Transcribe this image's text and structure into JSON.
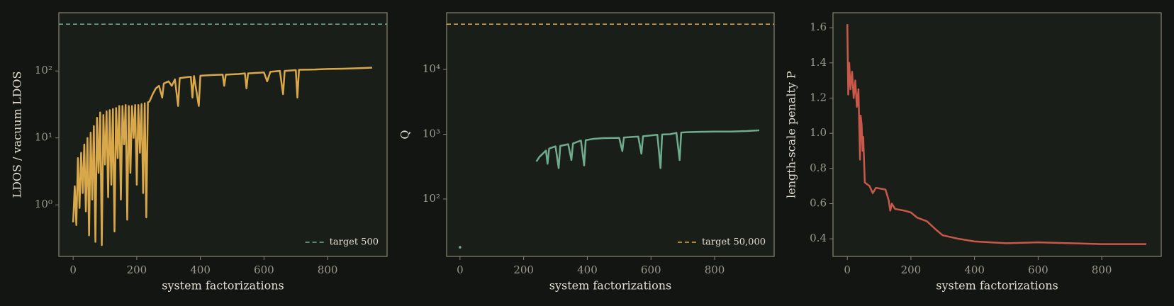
{
  "chart_data": [
    {
      "type": "line",
      "xlabel": "system factorizations",
      "ylabel": "LDOS / vacuum LDOS",
      "yscale": "log",
      "xlim": [
        -45,
        987
      ],
      "ylim": [
        0.17,
        740
      ],
      "xticks": [
        0,
        200,
        400,
        600,
        800
      ],
      "yticks": [
        {
          "value": 1,
          "label": "10⁰"
        },
        {
          "value": 10,
          "label": "10¹"
        },
        {
          "value": 100,
          "label": "10²"
        }
      ],
      "color": "#d9a84a",
      "x": [
        0,
        5,
        10,
        15,
        20,
        25,
        30,
        35,
        40,
        45,
        50,
        55,
        60,
        65,
        70,
        75,
        80,
        85,
        90,
        95,
        100,
        105,
        110,
        115,
        120,
        125,
        130,
        135,
        140,
        145,
        150,
        155,
        160,
        165,
        170,
        175,
        180,
        185,
        190,
        195,
        200,
        205,
        210,
        215,
        220,
        225,
        230,
        235,
        240,
        250,
        260,
        270,
        280,
        285,
        300,
        310,
        320,
        330,
        335,
        350,
        370,
        375,
        380,
        395,
        400,
        440,
        470,
        475,
        480,
        520,
        540,
        545,
        550,
        600,
        610,
        620,
        650,
        660,
        665,
        700,
        705,
        710,
        760,
        800,
        850,
        900,
        940
      ],
      "values": [
        0.55,
        1.9,
        0.5,
        5,
        0.9,
        6,
        1.5,
        8,
        0.8,
        10,
        0.35,
        12,
        1.2,
        15,
        0.28,
        20,
        3,
        24,
        0.25,
        22,
        4,
        25,
        1.3,
        26,
        2,
        27,
        0.4,
        28,
        5,
        30,
        1.2,
        30,
        8,
        31,
        0.6,
        30,
        3,
        30,
        10,
        31,
        2,
        31,
        6,
        32,
        1.5,
        33,
        0.65,
        34,
        35,
        45,
        55,
        60,
        40,
        65,
        70,
        60,
        75,
        30,
        78,
        80,
        82,
        40,
        84,
        30,
        85,
        87,
        88,
        60,
        88,
        90,
        92,
        55,
        92,
        95,
        70,
        97,
        100,
        45,
        100,
        103,
        40,
        104,
        105,
        107,
        108,
        110,
        112
      ],
      "reference": {
        "value": 500,
        "label": "target 500",
        "color": "#6fac8c"
      },
      "legend": "lower right"
    },
    {
      "type": "line",
      "xlabel": "system factorizations",
      "ylabel": "Q",
      "yscale": "log",
      "xlim": [
        -42,
        987
      ],
      "ylim": [
        13,
        75000
      ],
      "xticks": [
        0,
        200,
        400,
        600,
        800
      ],
      "yticks": [
        {
          "value": 100,
          "label": "10²"
        },
        {
          "value": 1000,
          "label": "10³"
        },
        {
          "value": 10000,
          "label": "10⁴"
        }
      ],
      "color": "#6fac8c",
      "x": [
        0,
        120,
        240,
        250,
        260,
        270,
        275,
        280,
        300,
        310,
        315,
        340,
        350,
        355,
        380,
        390,
        395,
        420,
        450,
        500,
        510,
        515,
        560,
        570,
        575,
        620,
        630,
        635,
        660,
        680,
        690,
        695,
        720,
        750,
        800,
        850,
        900,
        940
      ],
      "values": [
        18,
        null,
        380,
        450,
        500,
        560,
        350,
        600,
        650,
        300,
        660,
        700,
        400,
        720,
        800,
        330,
        810,
        850,
        870,
        880,
        550,
        890,
        920,
        500,
        930,
        980,
        300,
        990,
        1000,
        1050,
        400,
        1060,
        1080,
        1090,
        1100,
        1100,
        1120,
        1150
      ],
      "reference": {
        "value": 50000,
        "label": "target 50,000",
        "color": "#e0a93e"
      },
      "legend": "lower right"
    },
    {
      "type": "line",
      "xlabel": "system factorizations",
      "ylabel": "length-scale penalty P",
      "yscale": "linear",
      "xlim": [
        -45,
        987
      ],
      "ylim": [
        0.3,
        1.685
      ],
      "xticks": [
        0,
        200,
        400,
        600,
        800
      ],
      "yticks": [
        0.4,
        0.6,
        0.8,
        {
          "value": 1,
          "label": "1.0"
        },
        1.2,
        1.4,
        1.6
      ],
      "color": "#c8594a",
      "x": [
        0,
        3,
        6,
        10,
        15,
        20,
        25,
        30,
        35,
        40,
        42,
        45,
        48,
        50,
        55,
        70,
        80,
        90,
        120,
        130,
        135,
        140,
        150,
        180,
        200,
        220,
        250,
        280,
        300,
        350,
        400,
        500,
        600,
        700,
        800,
        940
      ],
      "values": [
        1.62,
        1.22,
        1.4,
        1.25,
        1.35,
        1.2,
        1.3,
        1.15,
        1.25,
        0.85,
        1.1,
        1.05,
        0.9,
        0.98,
        0.72,
        0.7,
        0.66,
        0.69,
        0.68,
        0.62,
        0.56,
        0.6,
        0.57,
        0.56,
        0.55,
        0.52,
        0.5,
        0.45,
        0.42,
        0.4,
        0.385,
        0.375,
        0.38,
        0.375,
        0.37,
        0.37
      ]
    }
  ]
}
